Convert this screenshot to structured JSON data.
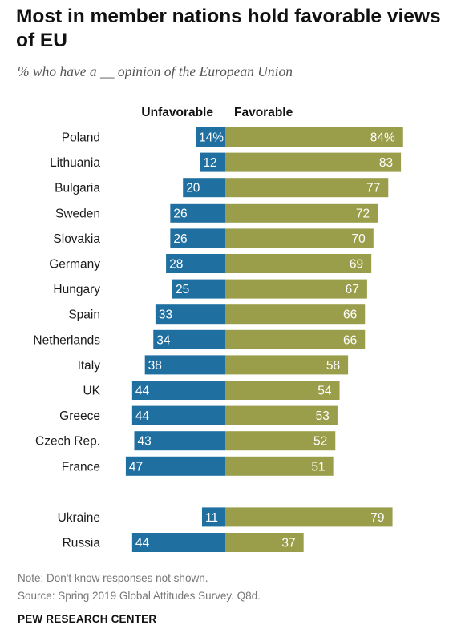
{
  "chart_data": {
    "type": "bar",
    "orientation": "diverging-horizontal",
    "title": "Most in member nations hold favorable views of EU",
    "subtitle": "% who have a __ opinion of the European Union",
    "categories": [
      "Poland",
      "Lithuania",
      "Bulgaria",
      "Sweden",
      "Slovakia",
      "Germany",
      "Hungary",
      "Spain",
      "Netherlands",
      "Italy",
      "UK",
      "Greece",
      "Czech Rep.",
      "France",
      "Ukraine",
      "Russia"
    ],
    "series": [
      {
        "name": "Unfavorable",
        "color": "#1f6fa0",
        "values": [
          14,
          12,
          20,
          26,
          26,
          28,
          25,
          33,
          34,
          38,
          44,
          44,
          43,
          47,
          11,
          44
        ],
        "labels": [
          "14%",
          "12",
          "20",
          "26",
          "26",
          "28",
          "25",
          "33",
          "34",
          "38",
          "44",
          "44",
          "43",
          "47",
          "11",
          "44"
        ]
      },
      {
        "name": "Favorable",
        "color": "#9a9d4a",
        "values": [
          84,
          83,
          77,
          72,
          70,
          69,
          67,
          66,
          66,
          58,
          54,
          53,
          52,
          51,
          79,
          37
        ],
        "labels": [
          "84%",
          "83",
          "77",
          "72",
          "70",
          "69",
          "67",
          "66",
          "66",
          "58",
          "54",
          "53",
          "52",
          "51",
          "79",
          "37"
        ]
      }
    ],
    "group_break_after": "France",
    "grid": false
  },
  "footer": {
    "note": "Note: Don't know responses not shown.",
    "source": "Source: Spring 2019 Global Attitudes Survey. Q8d.",
    "credit": "PEW RESEARCH CENTER"
  }
}
